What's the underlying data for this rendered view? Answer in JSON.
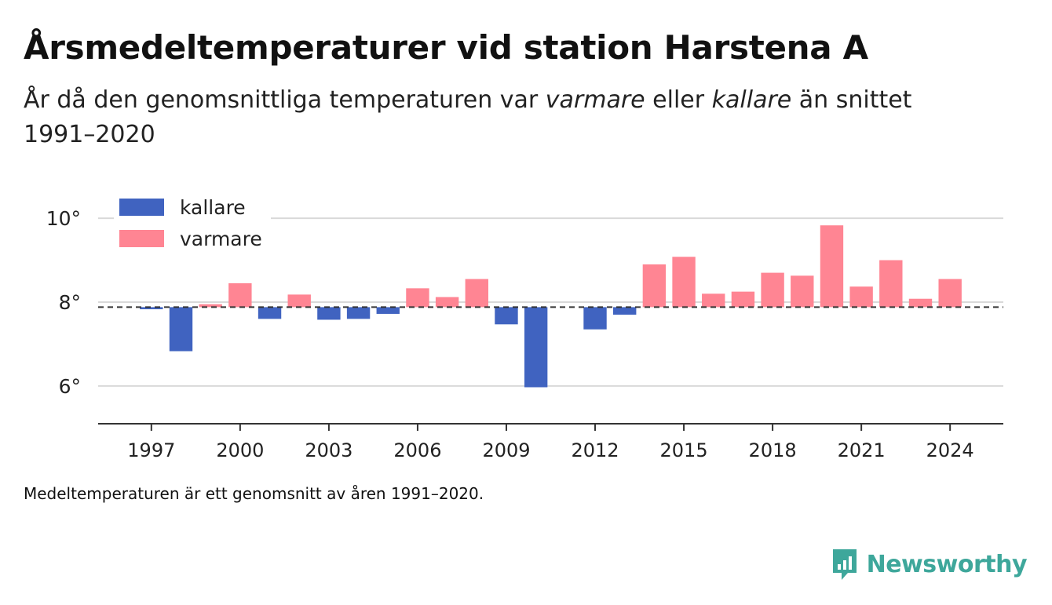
{
  "title": "Årsmedeltemperaturer vid station Harstena A",
  "subtitle": {
    "part1": "År då den genomsnittliga temperaturen var ",
    "warm_word": "varmare",
    "part2": " eller ",
    "cold_word": "kallare",
    "part3": " än snittet 1991–2020"
  },
  "footnote": "Medeltemperaturen är ett genomsnitt av åren 1991–2020.",
  "brand": {
    "name": "Newsworthy",
    "icon": "newsworthy-logo-icon",
    "color": "#3ea79b"
  },
  "colors": {
    "cold": "#4063c0",
    "warm": "#ff8593",
    "baseline": "#333333",
    "grid": "#d9d9d9",
    "axis": "#333333"
  },
  "chart_data": {
    "type": "bar",
    "baseline": 7.88,
    "ylim": [
      5.1,
      10.9
    ],
    "yticks": [
      6,
      8,
      10
    ],
    "ytick_labels": [
      "6°",
      "8°",
      "10°"
    ],
    "xticks": [
      1997,
      2000,
      2003,
      2006,
      2009,
      2012,
      2015,
      2018,
      2021,
      2024
    ],
    "xlim": [
      1995.2,
      2025.8
    ],
    "grid": true,
    "legend": {
      "placement": "top-left",
      "entries": [
        {
          "label": "kallare",
          "color": "#4063c0"
        },
        {
          "label": "varmare",
          "color": "#ff8593"
        }
      ]
    },
    "series": [
      {
        "name": "kallare",
        "points": [
          {
            "year": 1997,
            "value": 7.83
          },
          {
            "year": 1998,
            "value": 6.83
          },
          {
            "year": 2001,
            "value": 7.6
          },
          {
            "year": 2003,
            "value": 7.58
          },
          {
            "year": 2004,
            "value": 7.6
          },
          {
            "year": 2005,
            "value": 7.72
          },
          {
            "year": 2009,
            "value": 7.47
          },
          {
            "year": 2010,
            "value": 5.97
          },
          {
            "year": 2012,
            "value": 7.35
          },
          {
            "year": 2013,
            "value": 7.7
          }
        ]
      },
      {
        "name": "varmare",
        "points": [
          {
            "year": 1999,
            "value": 7.95
          },
          {
            "year": 2000,
            "value": 8.45
          },
          {
            "year": 2002,
            "value": 8.18
          },
          {
            "year": 2006,
            "value": 8.33
          },
          {
            "year": 2007,
            "value": 8.12
          },
          {
            "year": 2008,
            "value": 8.55
          },
          {
            "year": 2014,
            "value": 8.9
          },
          {
            "year": 2015,
            "value": 9.08
          },
          {
            "year": 2016,
            "value": 8.2
          },
          {
            "year": 2017,
            "value": 8.25
          },
          {
            "year": 2018,
            "value": 8.7
          },
          {
            "year": 2019,
            "value": 8.63
          },
          {
            "year": 2020,
            "value": 9.83
          },
          {
            "year": 2021,
            "value": 8.37
          },
          {
            "year": 2022,
            "value": 9.0
          },
          {
            "year": 2023,
            "value": 8.08
          },
          {
            "year": 2024,
            "value": 8.55
          }
        ]
      }
    ]
  }
}
